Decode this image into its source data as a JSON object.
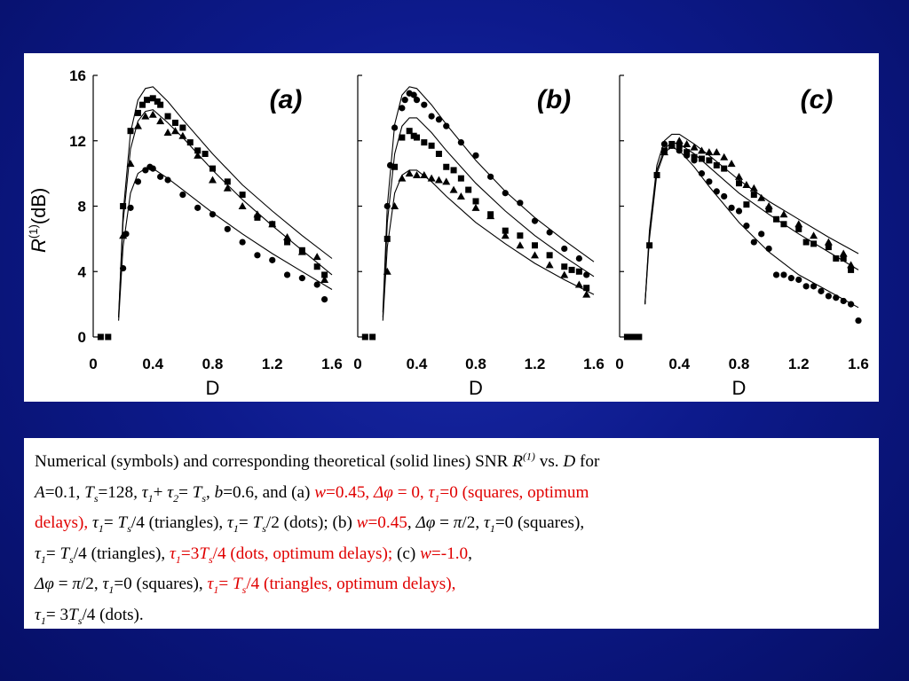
{
  "colors": {
    "background": "#0d1a8c",
    "panel": "#ffffff",
    "highlight": "#e00000"
  },
  "figure": {
    "ylabel_main": "R",
    "ylabel_sup": "(1)",
    "ylabel_unit": "(dB)",
    "panel_tags": [
      "(a)",
      "(b)",
      "(c)"
    ],
    "xlabel": "D"
  },
  "chart_data": {
    "type": "scatter",
    "note_series": "symbols: squares, triangles, dots; solid lines are theory",
    "ylabel": "R(1)(dB)",
    "xlabel": "D",
    "xlim": [
      0,
      1.6
    ],
    "ylim": [
      0,
      16
    ],
    "x_ticks": [
      "0",
      "0.4",
      "0.8",
      "1.2",
      "1.6"
    ],
    "y_ticks": [
      "0",
      "4",
      "8",
      "12",
      "16"
    ],
    "panels": [
      {
        "tag": "(a)",
        "lines": [
          {
            "x": [
              0.17,
              0.2,
              0.25,
              0.3,
              0.35,
              0.4,
              0.5,
              0.6,
              0.8,
              1.0,
              1.2,
              1.4,
              1.6
            ],
            "y": [
              1.2,
              7.5,
              12.5,
              14.5,
              15.2,
              15.3,
              14.4,
              13.3,
              11.2,
              9.3,
              7.7,
              6.2,
              4.8
            ]
          },
          {
            "x": [
              0.17,
              0.2,
              0.25,
              0.3,
              0.35,
              0.4,
              0.5,
              0.6,
              0.8,
              1.0,
              1.2,
              1.4,
              1.6
            ],
            "y": [
              1.2,
              7.0,
              11.5,
              13.2,
              13.8,
              13.9,
              13.1,
              12.2,
              10.2,
              8.4,
              6.8,
              5.3,
              3.8
            ]
          },
          {
            "x": [
              0.17,
              0.2,
              0.25,
              0.3,
              0.35,
              0.4,
              0.5,
              0.6,
              0.8,
              1.0,
              1.2,
              1.4,
              1.6
            ],
            "y": [
              1.0,
              5.5,
              8.8,
              10.0,
              10.3,
              10.3,
              9.7,
              9.0,
              7.6,
              6.3,
              5.1,
              4.0,
              2.9
            ]
          }
        ],
        "series": [
          {
            "name": "squares",
            "marker": "square",
            "x": [
              0.05,
              0.1,
              0.2,
              0.25,
              0.3,
              0.33,
              0.36,
              0.4,
              0.43,
              0.45,
              0.5,
              0.55,
              0.6,
              0.65,
              0.7,
              0.75,
              0.8,
              0.9,
              1.0,
              1.1,
              1.2,
              1.3,
              1.4,
              1.5,
              1.55
            ],
            "y": [
              0,
              0,
              8.0,
              12.6,
              13.7,
              14.2,
              14.5,
              14.6,
              14.4,
              14.2,
              13.5,
              13.1,
              12.8,
              11.9,
              11.4,
              11.2,
              10.3,
              9.5,
              8.7,
              7.3,
              6.9,
              5.8,
              5.3,
              4.3,
              3.8
            ]
          },
          {
            "name": "triangles",
            "marker": "triangle",
            "x": [
              0.2,
              0.25,
              0.3,
              0.35,
              0.4,
              0.45,
              0.5,
              0.55,
              0.6,
              0.7,
              0.8,
              0.9,
              1.0,
              1.1,
              1.2,
              1.3,
              1.4,
              1.5,
              1.55
            ],
            "y": [
              6.2,
              10.6,
              12.9,
              13.5,
              13.6,
              13.2,
              12.5,
              12.6,
              12.3,
              11.1,
              9.6,
              9.1,
              8.0,
              7.5,
              6.9,
              6.1,
              5.2,
              4.9,
              3.5
            ]
          },
          {
            "name": "dots",
            "marker": "circle",
            "x": [
              0.2,
              0.22,
              0.25,
              0.3,
              0.35,
              0.38,
              0.4,
              0.45,
              0.5,
              0.6,
              0.7,
              0.8,
              0.9,
              1.0,
              1.1,
              1.2,
              1.3,
              1.4,
              1.5,
              1.55
            ],
            "y": [
              4.2,
              6.3,
              7.9,
              9.5,
              10.2,
              10.4,
              10.3,
              9.8,
              9.6,
              8.7,
              7.9,
              7.5,
              6.6,
              5.8,
              5.0,
              4.7,
              3.8,
              3.6,
              3.2,
              2.3
            ]
          }
        ]
      },
      {
        "tag": "(b)",
        "lines": [
          {
            "x": [
              0.17,
              0.2,
              0.25,
              0.3,
              0.35,
              0.4,
              0.5,
              0.6,
              0.8,
              1.0,
              1.2,
              1.4,
              1.6
            ],
            "y": [
              1.5,
              8.0,
              13.0,
              14.8,
              15.3,
              15.2,
              14.2,
              13.0,
              10.8,
              8.9,
              7.3,
              5.9,
              4.6
            ]
          },
          {
            "x": [
              0.17,
              0.2,
              0.25,
              0.3,
              0.35,
              0.4,
              0.5,
              0.6,
              0.8,
              1.0,
              1.2,
              1.4,
              1.6
            ],
            "y": [
              1.2,
              7.0,
              11.2,
              12.9,
              13.4,
              13.4,
              12.5,
              11.4,
              9.4,
              7.7,
              6.2,
              4.9,
              3.7
            ]
          },
          {
            "x": [
              0.17,
              0.2,
              0.25,
              0.3,
              0.35,
              0.4,
              0.5,
              0.6,
              0.8,
              1.0,
              1.2,
              1.4,
              1.6
            ],
            "y": [
              1.0,
              5.5,
              8.8,
              9.9,
              10.2,
              10.2,
              9.5,
              8.6,
              7.0,
              5.7,
              4.5,
              3.5,
              2.6
            ]
          }
        ],
        "series": [
          {
            "name": "squares",
            "marker": "square",
            "x": [
              0.05,
              0.1,
              0.2,
              0.25,
              0.3,
              0.35,
              0.38,
              0.4,
              0.45,
              0.5,
              0.55,
              0.6,
              0.65,
              0.7,
              0.75,
              0.8,
              0.9,
              1.0,
              1.1,
              1.2,
              1.3,
              1.4,
              1.45,
              1.5,
              1.55
            ],
            "y": [
              0,
              0,
              6.0,
              10.4,
              12.2,
              12.6,
              12.3,
              12.2,
              11.9,
              11.7,
              11.2,
              10.4,
              10.2,
              9.7,
              9.0,
              8.3,
              7.5,
              6.5,
              6.2,
              5.6,
              5.0,
              4.3,
              4.1,
              4.0,
              3.0
            ]
          },
          {
            "name": "triangles",
            "marker": "triangle",
            "x": [
              0.2,
              0.25,
              0.3,
              0.35,
              0.4,
              0.45,
              0.5,
              0.55,
              0.6,
              0.65,
              0.7,
              0.8,
              0.9,
              1.0,
              1.1,
              1.2,
              1.3,
              1.4,
              1.5,
              1.55
            ],
            "y": [
              4.0,
              8.0,
              9.7,
              10.0,
              9.9,
              9.9,
              9.7,
              9.6,
              9.5,
              9.0,
              8.6,
              7.9,
              7.4,
              6.2,
              5.6,
              5.0,
              4.4,
              3.8,
              3.2,
              2.6
            ]
          },
          {
            "name": "dots",
            "marker": "circle",
            "x": [
              0.2,
              0.22,
              0.25,
              0.3,
              0.32,
              0.35,
              0.38,
              0.4,
              0.45,
              0.5,
              0.55,
              0.6,
              0.7,
              0.8,
              0.9,
              1.0,
              1.1,
              1.2,
              1.3,
              1.4,
              1.5,
              1.55
            ],
            "y": [
              8.0,
              10.5,
              12.8,
              14.0,
              14.5,
              14.9,
              14.8,
              14.5,
              14.2,
              13.5,
              13.3,
              12.9,
              11.9,
              11.1,
              9.8,
              8.8,
              8.2,
              7.1,
              6.4,
              5.4,
              4.8,
              3.8
            ]
          }
        ]
      },
      {
        "tag": "(c)",
        "lines": [
          {
            "x": [
              0.17,
              0.2,
              0.25,
              0.3,
              0.35,
              0.4,
              0.5,
              0.6,
              0.8,
              1.0,
              1.2,
              1.4,
              1.6
            ],
            "y": [
              2.0,
              6.5,
              10.5,
              12.0,
              12.4,
              12.4,
              11.8,
              11.1,
              9.6,
              8.3,
              7.2,
              6.1,
              5.1
            ]
          },
          {
            "x": [
              0.17,
              0.2,
              0.25,
              0.3,
              0.35,
              0.4,
              0.5,
              0.6,
              0.8,
              1.0,
              1.2,
              1.4,
              1.6
            ],
            "y": [
              2.0,
              6.3,
              10.2,
              11.5,
              11.9,
              11.8,
              11.2,
              10.4,
              8.8,
              7.5,
              6.3,
              5.2,
              4.1
            ]
          },
          {
            "x": [
              0.17,
              0.2,
              0.25,
              0.3,
              0.35,
              0.4,
              0.5,
              0.6,
              0.8,
              1.0,
              1.2,
              1.4,
              1.6
            ],
            "y": [
              2.0,
              6.0,
              10.0,
              11.3,
              11.6,
              11.4,
              10.4,
              9.2,
              7.0,
              5.2,
              3.8,
              2.8,
              1.8
            ]
          }
        ],
        "series": [
          {
            "name": "squares",
            "marker": "square",
            "x": [
              0.05,
              0.08,
              0.1,
              0.13,
              0.2,
              0.25,
              0.3,
              0.35,
              0.4,
              0.45,
              0.5,
              0.55,
              0.6,
              0.65,
              0.7,
              0.8,
              0.85,
              0.9,
              1.0,
              1.05,
              1.1,
              1.2,
              1.25,
              1.3,
              1.4,
              1.45,
              1.5,
              1.55
            ],
            "y": [
              0,
              0,
              0,
              0,
              5.6,
              9.9,
              11.4,
              11.8,
              11.7,
              11.3,
              11.0,
              10.9,
              10.8,
              10.5,
              10.3,
              9.4,
              8.1,
              8.7,
              7.8,
              7.2,
              6.9,
              6.6,
              5.8,
              5.7,
              5.5,
              4.8,
              4.8,
              4.1
            ]
          },
          {
            "name": "triangles",
            "marker": "triangle",
            "x": [
              0.3,
              0.35,
              0.4,
              0.45,
              0.5,
              0.55,
              0.6,
              0.65,
              0.7,
              0.75,
              0.8,
              0.85,
              0.9,
              0.95,
              1.0,
              1.1,
              1.2,
              1.3,
              1.4,
              1.5,
              1.55
            ],
            "y": [
              11.3,
              11.7,
              12.0,
              11.8,
              11.6,
              11.4,
              11.3,
              11.3,
              11.0,
              10.6,
              9.8,
              9.3,
              9.1,
              8.5,
              8.0,
              7.5,
              6.9,
              6.2,
              5.8,
              5.1,
              4.4
            ]
          },
          {
            "name": "dots",
            "marker": "circle",
            "x": [
              0.3,
              0.35,
              0.4,
              0.45,
              0.5,
              0.55,
              0.6,
              0.65,
              0.7,
              0.75,
              0.8,
              0.85,
              0.9,
              0.95,
              1.0,
              1.05,
              1.1,
              1.15,
              1.2,
              1.25,
              1.3,
              1.35,
              1.4,
              1.45,
              1.5,
              1.55,
              1.6
            ],
            "y": [
              11.8,
              11.7,
              11.4,
              11.1,
              10.8,
              10.0,
              9.5,
              8.9,
              8.6,
              7.9,
              7.7,
              6.8,
              5.8,
              6.3,
              5.4,
              3.8,
              3.8,
              3.6,
              3.5,
              3.1,
              3.1,
              2.8,
              2.5,
              2.4,
              2.2,
              2.0,
              1.0
            ]
          }
        ]
      }
    ]
  },
  "caption": {
    "l1_a": "Numerical (symbols) and corresponding theoretical (solid lines) SNR ",
    "l1_R": "R",
    "l1_Rsup": "(1)",
    "l1_b": " vs. ",
    "l1_D": "D",
    "l1_c": " for",
    "l2_A": "A",
    "l2_a": "=0.1, ",
    "l2_T": "T",
    "l2_s": "s",
    "l2_b": "=128",
    "l2_comma": ",",
    "l2_tau1": " τ",
    "l2_1": "1",
    "l2_plus": "+ ",
    "l2_tau2": "τ",
    "l2_2": "2",
    "l2_eq": "= ",
    "l2_Ts": "T",
    "l2_ss": "s",
    "l2_c": ", ",
    "l2_bvar": "b",
    "l2_d": "=0.6, and (a) ",
    "l2_w": "w",
    "l2_e": "=0.45, ",
    "l2_dphi": "Δφ",
    "l2_f": " = 0, ",
    "l2_tau": "τ",
    "l2_t1": "1",
    "l2_g": "=0 (squares, optimum",
    "l3_a": "delays), ",
    "l3_tau": "τ",
    "l3_1": "1",
    "l3_eq": "= ",
    "l3_T": "T",
    "l3_s": "s",
    "l3_b": "/4 (triangles), ",
    "l3_tau2": "τ",
    "l3_12": "1",
    "l3_eq2": "= ",
    "l3_T2": "T",
    "l3_s2": "s",
    "l3_c": "/2 (dots); (b) ",
    "l3_w": "w",
    "l3_d": "=0.45",
    "l3_e": ", ",
    "l3_dphi": "Δφ",
    "l3_f": " = ",
    "l3_pi": "π",
    "l3_g": "/2, ",
    "l3_tau3": "τ",
    "l3_13": "1",
    "l3_h": "=0 (squares),",
    "l4_tau": "τ",
    "l4_1": "1",
    "l4_eq": "= ",
    "l4_T": "T",
    "l4_s": "s",
    "l4_a": "/4 (triangles), ",
    "l4_tau2": "τ",
    "l4_12": "1",
    "l4_b": "=3",
    "l4_T2": "T",
    "l4_s2": "s",
    "l4_c": "/4 (dots, optimum delays);",
    "l4_d": " (c) ",
    "l4_w": "w",
    "l4_e": "=-1.0",
    "l4_f": ",",
    "l5_dphi": "Δφ",
    "l5_a": " = ",
    "l5_pi": "π",
    "l5_b": "/2, ",
    "l5_tau": "τ",
    "l5_1": "1",
    "l5_c": "=0 (squares), ",
    "l5_tau2": "τ",
    "l5_12": "1",
    "l5_eq": "= ",
    "l5_T": "T",
    "l5_s": "s",
    "l5_d": "/4 (triangles, optimum delays),",
    "l6_tau": "τ",
    "l6_1": "1",
    "l6_a": "= 3",
    "l6_T": "T",
    "l6_s": "s",
    "l6_b": "/4 (dots)."
  }
}
